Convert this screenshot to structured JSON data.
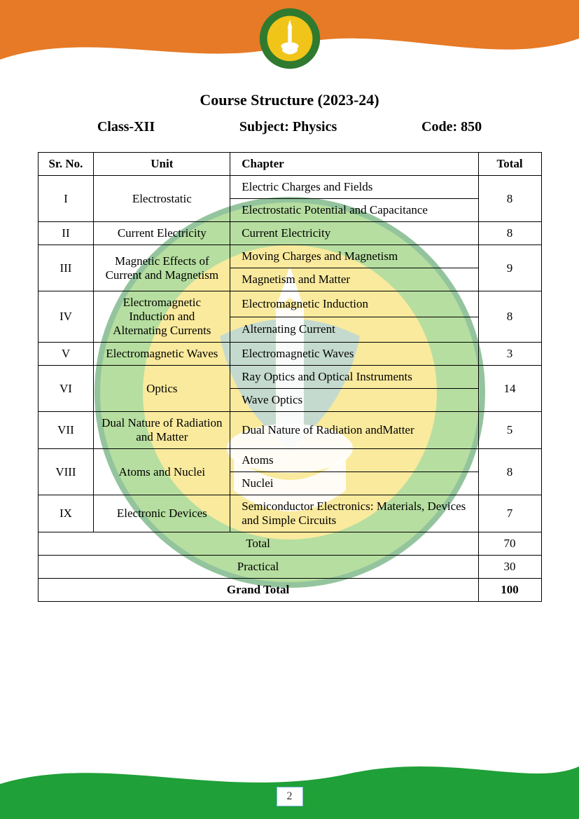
{
  "colors": {
    "orange": "#e67a27",
    "green": "#1fa038",
    "logo_ring": "#2f7a2f",
    "logo_inner": "#f0c419",
    "wm_outer_ring": "#2b8a3e",
    "wm_green": "#6fbf44",
    "wm_yellow": "#f7d63e",
    "wm_blue": "#5fa8c7",
    "pagebox_border": "#7fb8d8"
  },
  "header": {
    "title": "Course Structure (2023-24)",
    "class": "Class-XII",
    "subject": "Subject: Physics",
    "code": "Code: 850"
  },
  "table": {
    "headers": {
      "sr": "Sr. No.",
      "unit": "Unit",
      "chapter": "Chapter",
      "total": "Total"
    },
    "rows": [
      {
        "sr": "I",
        "unit": "Electrostatic",
        "chapters": [
          "Electric Charges and Fields",
          "Electrostatic Potential and Capacitance"
        ],
        "total": "8"
      },
      {
        "sr": "II",
        "unit": "Current Electricity",
        "chapters": [
          "Current Electricity"
        ],
        "total": "8"
      },
      {
        "sr": "III",
        "unit": "Magnetic Effects of Current and Magnetism",
        "chapters": [
          "Moving Charges and Magnetism",
          "Magnetism and Matter"
        ],
        "total": "9"
      },
      {
        "sr": "IV",
        "unit": "Electromagnetic Induction and Alternating Currents",
        "chapters": [
          "Electromagnetic Induction",
          "Alternating Current"
        ],
        "total": "8"
      },
      {
        "sr": "V",
        "unit": "Electromagnetic Waves",
        "chapters": [
          "Electromagnetic Waves"
        ],
        "total": "3"
      },
      {
        "sr": "VI",
        "unit": "Optics",
        "chapters": [
          "Ray Optics and Optical Instruments",
          "Wave Optics"
        ],
        "total": "14"
      },
      {
        "sr": "VII",
        "unit": "Dual Nature of Radiation and Matter",
        "chapters": [
          "Dual Nature of Radiation andMatter"
        ],
        "total": "5"
      },
      {
        "sr": "VIII",
        "unit": "Atoms and Nuclei",
        "chapters": [
          "Atoms",
          "Nuclei"
        ],
        "total": "8"
      },
      {
        "sr": "IX",
        "unit": "Electronic Devices",
        "chapters": [
          "Semiconductor Electronics: Materials, Devices and Simple Circuits"
        ],
        "total": "7"
      }
    ],
    "summary": [
      {
        "label": "Total",
        "value": "70",
        "bold": false
      },
      {
        "label": "Practical",
        "value": "30",
        "bold": false
      },
      {
        "label": "Grand Total",
        "value": "100",
        "bold": true
      }
    ]
  },
  "page_number": "2"
}
